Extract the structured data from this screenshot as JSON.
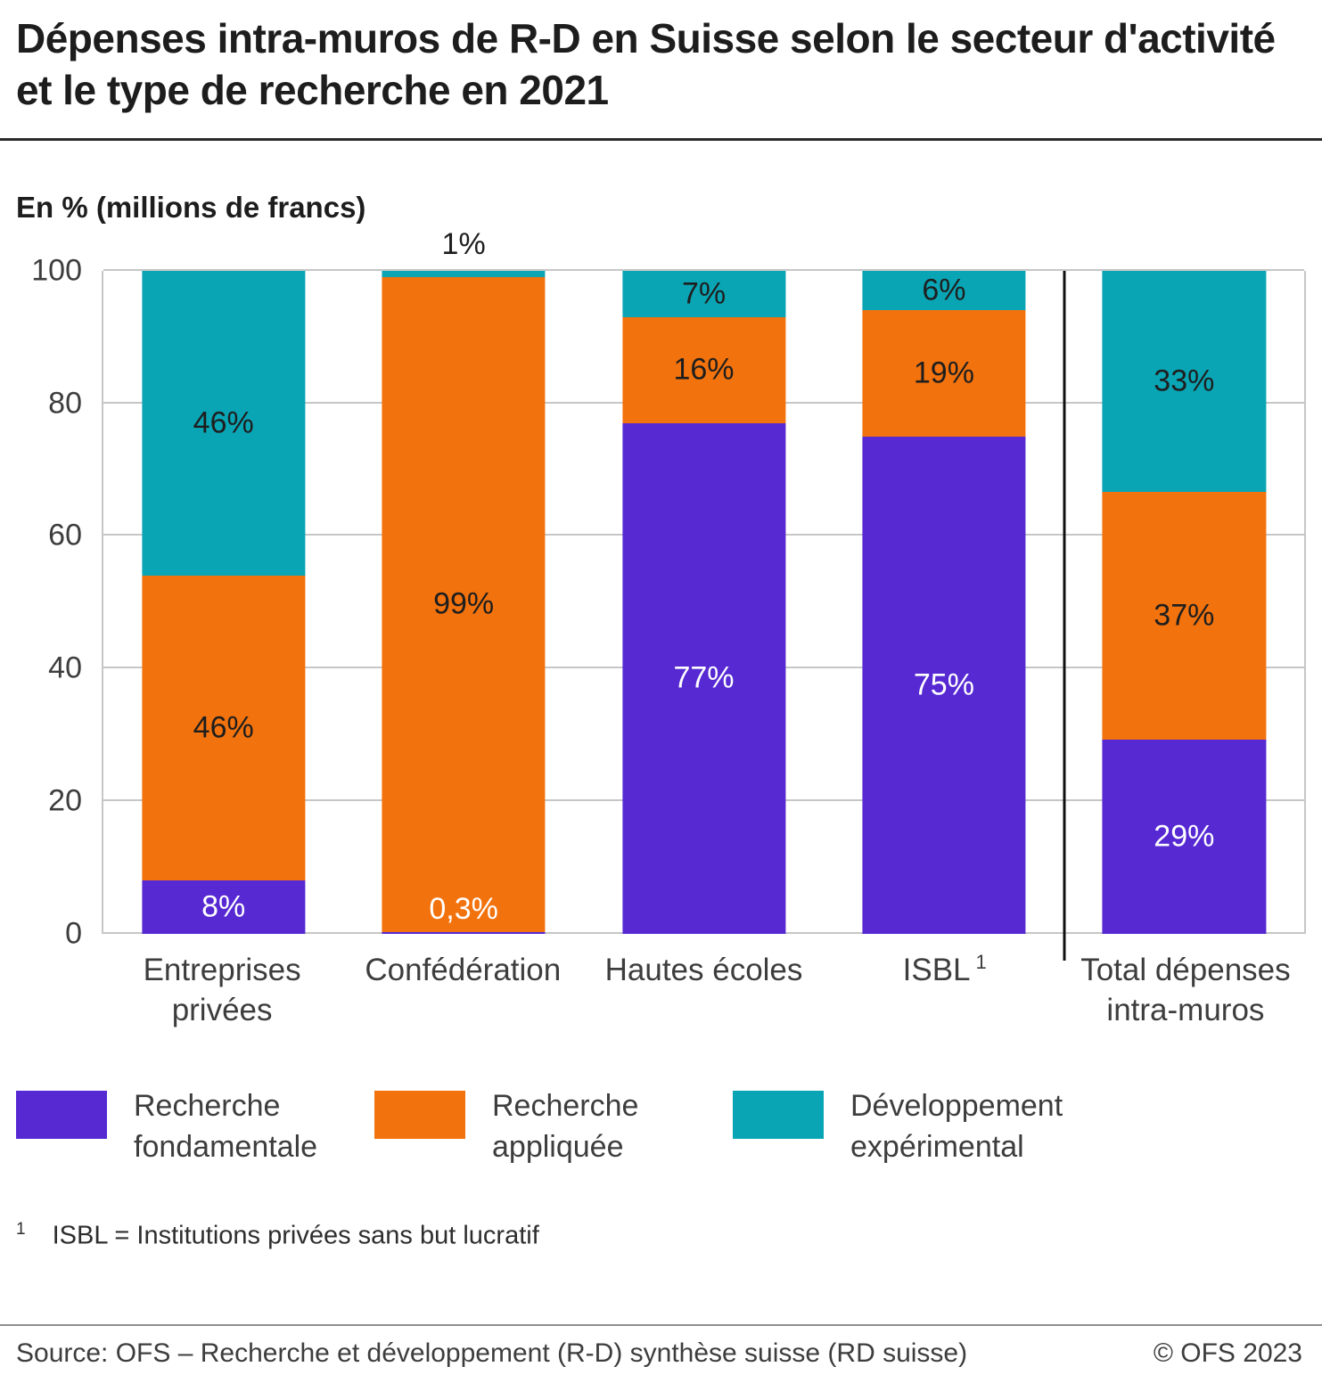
{
  "title": "Dépenses intra-muros de R-D en Suisse selon le secteur d'activité et le type de recherche en 2021",
  "unit_label": "En  % (millions de francs)",
  "chart_data": {
    "type": "bar",
    "stacked": true,
    "ylim": [
      0,
      100
    ],
    "yticks": [
      0,
      20,
      40,
      60,
      80,
      100
    ],
    "grid": "horizontal",
    "categories": [
      {
        "label": "Entreprises privées"
      },
      {
        "label": "Confédération"
      },
      {
        "label": "Hautes écoles"
      },
      {
        "label": "ISBL",
        "sup": "1"
      },
      {
        "label": "Total dépenses intra-muros"
      }
    ],
    "series": [
      {
        "name": "Recherche fondamentale",
        "color": "#5629d3",
        "label_color": "#ffffff",
        "values": [
          8,
          0.3,
          77,
          75,
          29
        ],
        "labels": [
          "8%",
          "0,3%",
          "77%",
          "75%",
          "29%"
        ]
      },
      {
        "name": "Recherche appliquée",
        "color": "#f2720d",
        "label_color": "#1e1e1e",
        "values": [
          46,
          99,
          16,
          19,
          37
        ],
        "labels": [
          "46%",
          "99%",
          "16%",
          "19%",
          "37%"
        ]
      },
      {
        "name": "Développement expérimental",
        "color": "#0aa5b5",
        "label_color": "#1e1e1e",
        "values": [
          46,
          1,
          7,
          6,
          33
        ],
        "labels": [
          "46%",
          "1%",
          "7%",
          "6%",
          "33%"
        ]
      }
    ],
    "separator_after_category_index": 3
  },
  "footnote": {
    "marker": "1",
    "text": "ISBL = Institutions privées sans but lucratif"
  },
  "footer": {
    "source": "Source: OFS – Recherche et développement (R-D) synthèse suisse (RD suisse)",
    "copyright": "© OFS 2023"
  }
}
